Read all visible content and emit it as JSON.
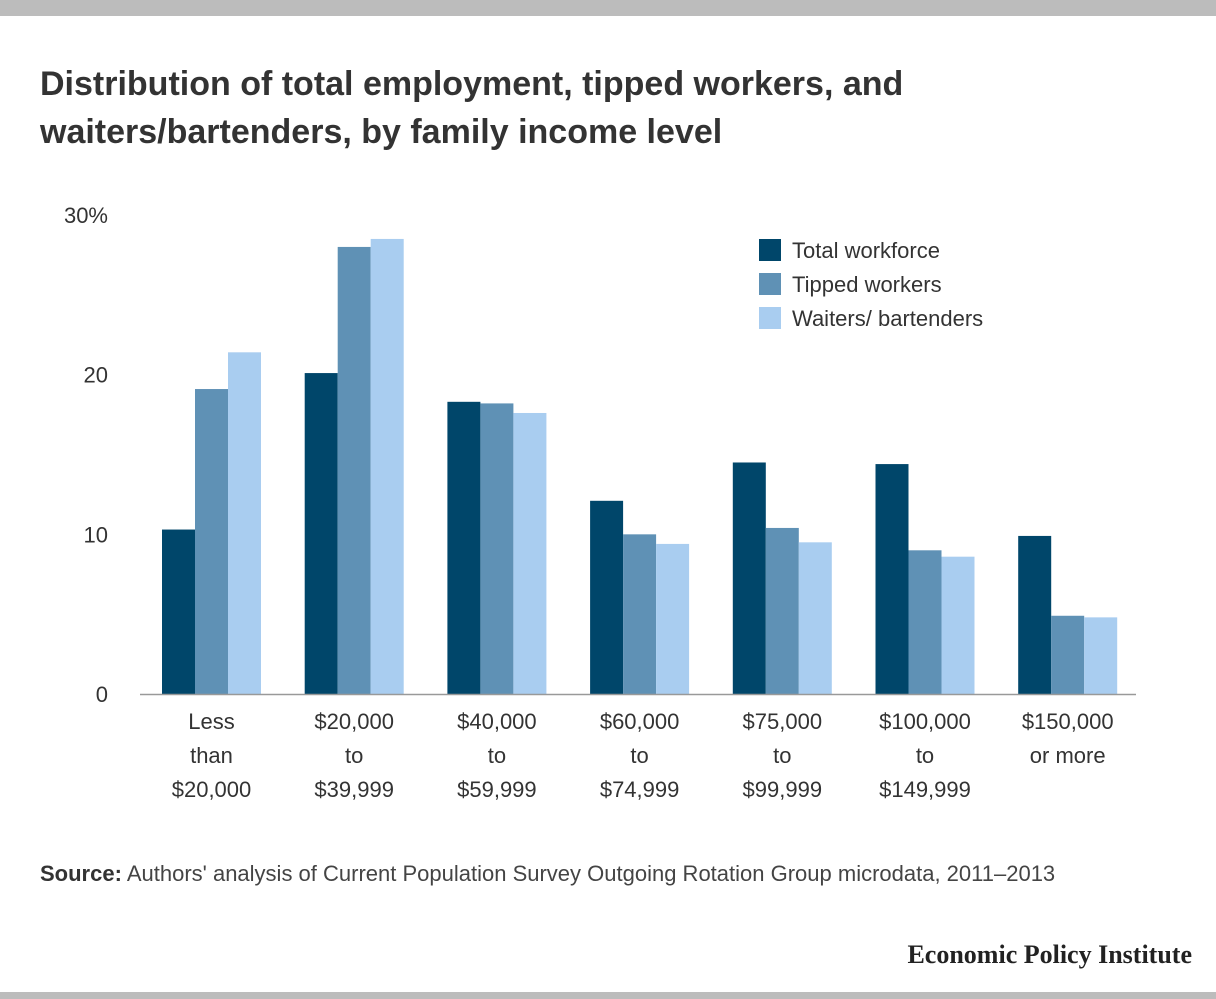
{
  "title": "Distribution of total employment, tipped workers, and waiters/bartenders, by family income level",
  "source_label": "Source:",
  "source_text": "Authors' analysis of Current Population Survey Outgoing Rotation Group microdata, 2011–2013",
  "brand": "Economic Policy Institute",
  "chart_data": {
    "type": "bar",
    "title": "Distribution of total employment, tipped workers, and waiters/bartenders, by family income level",
    "xlabel": "",
    "ylabel": "",
    "ylim": [
      0,
      30
    ],
    "yticks": [
      {
        "value": 0,
        "label": "0"
      },
      {
        "value": 10,
        "label": "10"
      },
      {
        "value": 20,
        "label": "20"
      },
      {
        "value": 30,
        "label": "30%"
      }
    ],
    "grid": false,
    "legend_position": "top-right",
    "categories": [
      [
        "Less",
        "than",
        "$20,000"
      ],
      [
        "$20,000",
        "to",
        "$39,999"
      ],
      [
        "$40,000",
        "to",
        "$59,999"
      ],
      [
        "$60,000",
        "to",
        "$74,999"
      ],
      [
        "$75,000",
        "to",
        "$99,999"
      ],
      [
        "$100,000",
        "to",
        "$149,999"
      ],
      [
        "$150,000",
        "or more"
      ]
    ],
    "series": [
      {
        "name": "Total workforce",
        "color": "#00466a",
        "values": [
          10.3,
          20.1,
          18.3,
          12.1,
          14.5,
          14.4,
          9.9
        ]
      },
      {
        "name": "Tipped workers",
        "color": "#5f91b5",
        "values": [
          19.1,
          28.0,
          18.2,
          10.0,
          10.4,
          9.0,
          4.9
        ]
      },
      {
        "name": "Waiters/ bartenders",
        "color": "#a9cdf0",
        "values": [
          21.4,
          28.5,
          17.6,
          9.4,
          9.5,
          8.6,
          4.8
        ]
      }
    ]
  }
}
